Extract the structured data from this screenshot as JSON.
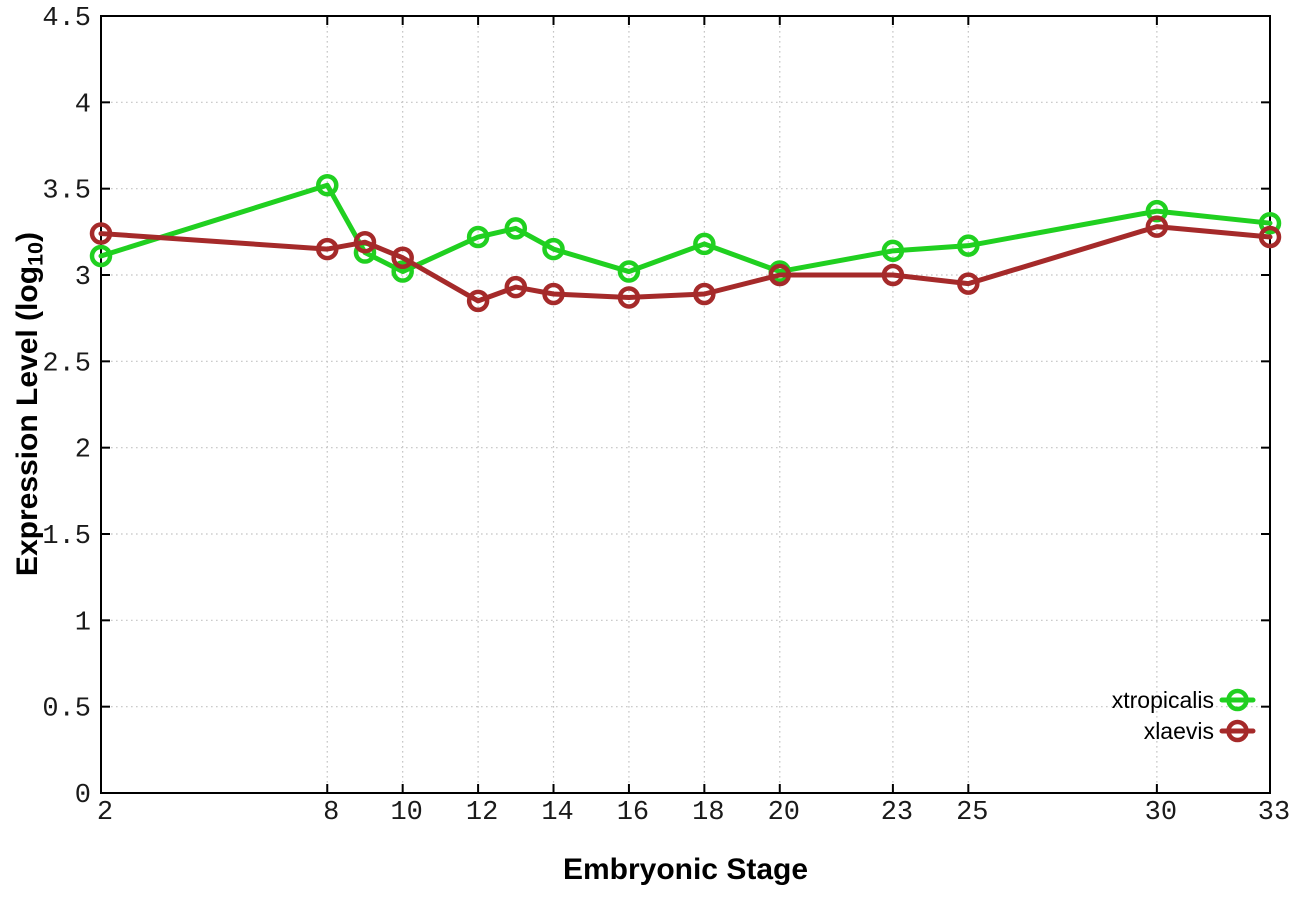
{
  "figure": {
    "background": "#ffffff",
    "border_color": "#000000",
    "grid_color": "#c4c4c4",
    "tick_label_color": "#1a1a1a",
    "ylabel_main": "Expression Level (log",
    "ylabel_sub": "10",
    "ylabel_close": ")",
    "xlabel": "Embryonic Stage"
  },
  "chart_data": {
    "type": "line",
    "title": "",
    "xlabel": "Embryonic Stage",
    "ylabel": "Expression Level (log10)",
    "xlim": [
      2,
      33
    ],
    "ylim": [
      0,
      4.5
    ],
    "x_ticks": [
      2,
      8,
      10,
      12,
      14,
      16,
      18,
      20,
      23,
      25,
      30,
      33
    ],
    "y_ticks": [
      0,
      0.5,
      1,
      1.5,
      2,
      2.5,
      3,
      3.5,
      4,
      4.5
    ],
    "grid": true,
    "marker": "open-circle",
    "legend_position": "bottom-right",
    "x": [
      2,
      8,
      9,
      10,
      12,
      13,
      14,
      16,
      18,
      20,
      23,
      25,
      30,
      33
    ],
    "series": [
      {
        "name": "xtropicalis",
        "color": "#20d020",
        "values": [
          3.11,
          3.52,
          3.13,
          3.02,
          3.22,
          3.27,
          3.15,
          3.02,
          3.18,
          3.02,
          3.14,
          3.17,
          3.37,
          3.3
        ]
      },
      {
        "name": "xlaevis",
        "color": "#a52a2a",
        "values": [
          3.24,
          3.15,
          3.19,
          3.1,
          2.85,
          2.93,
          2.89,
          2.87,
          2.89,
          3.0,
          3.0,
          2.95,
          3.28,
          3.22
        ]
      }
    ]
  }
}
